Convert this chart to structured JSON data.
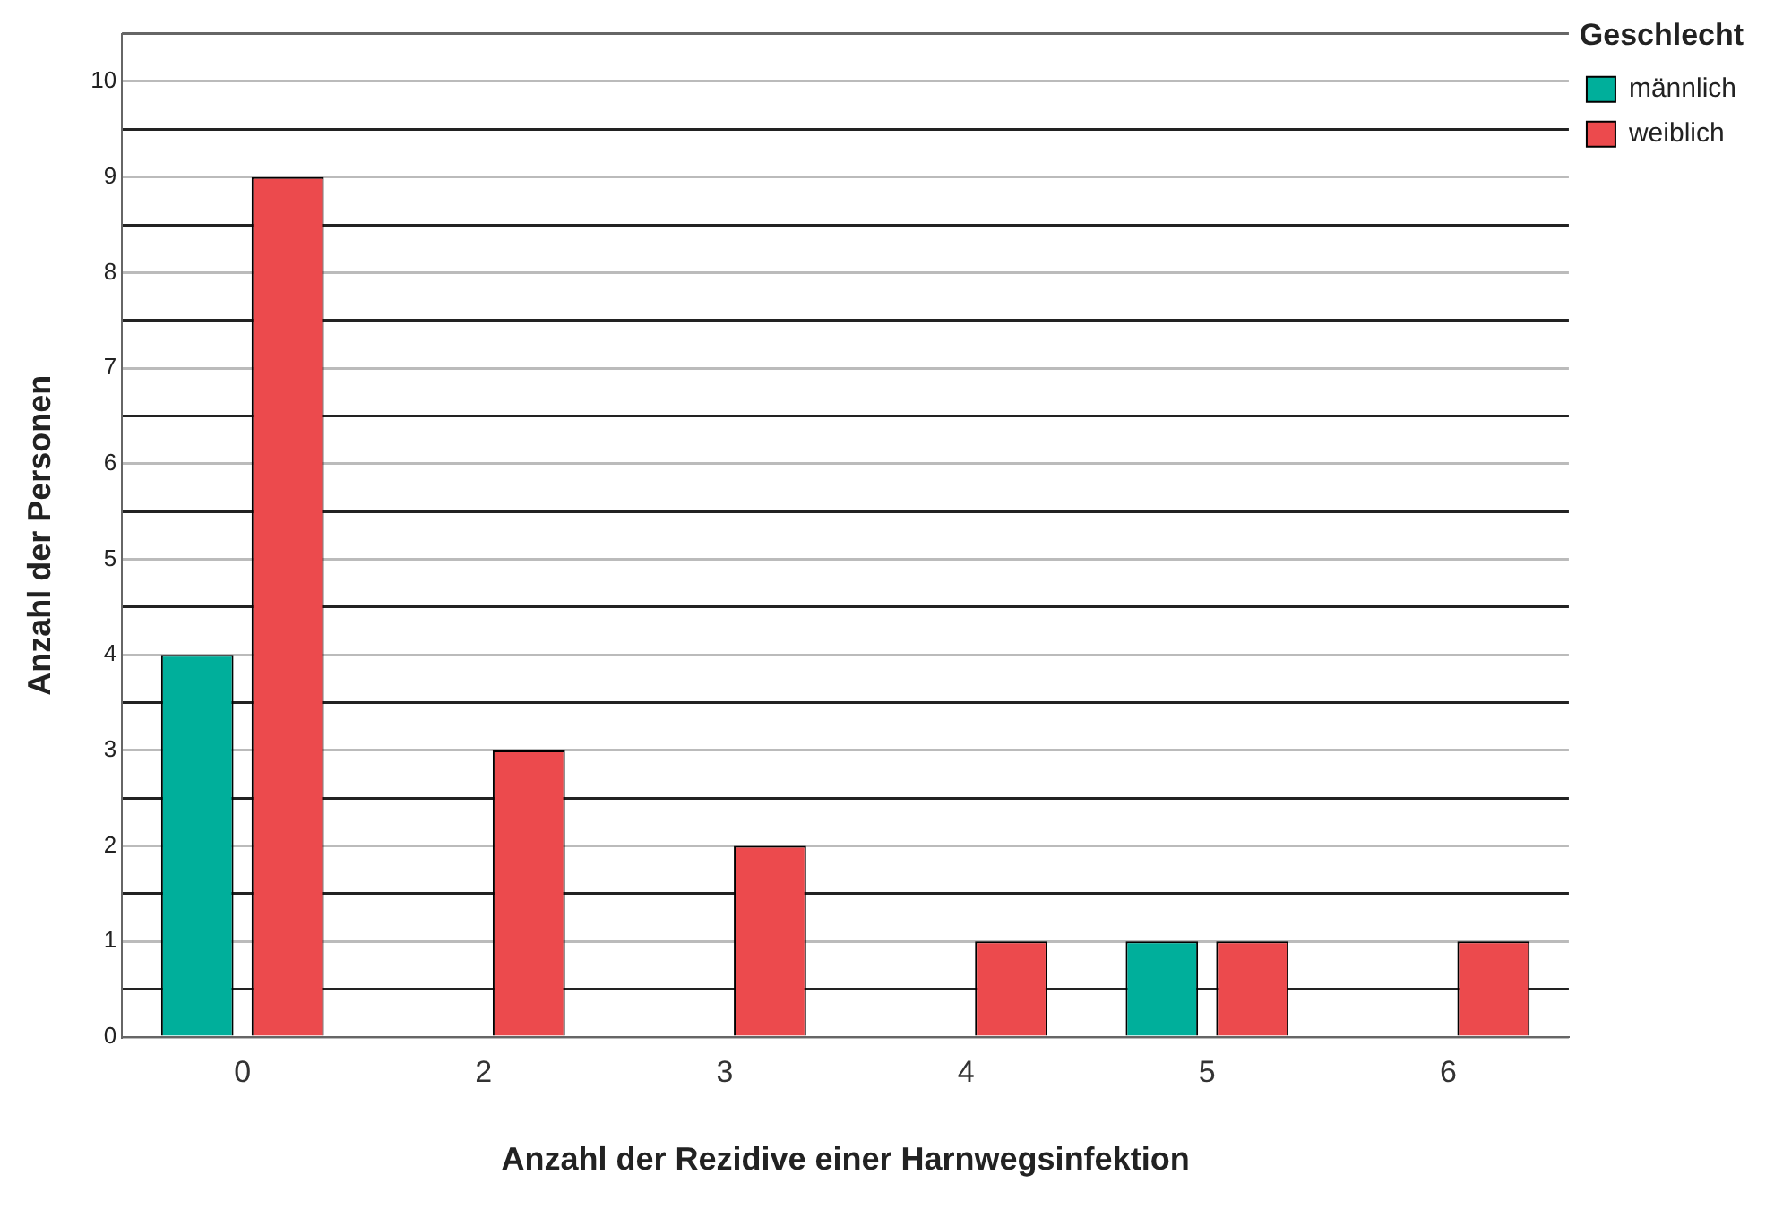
{
  "chart_data": {
    "type": "bar",
    "xlabel": "Anzahl der Rezidive einer Harnwegsinfektion",
    "ylabel": "Anzahl der Personen",
    "legend_title": "Geschlecht",
    "legend": "top right",
    "grid": "y",
    "categories": [
      "0",
      "2",
      "3",
      "4",
      "5",
      "6"
    ],
    "series": [
      {
        "name": "männlich",
        "color": "#00af9b",
        "values": [
          4,
          0,
          0,
          0,
          1,
          0
        ]
      },
      {
        "name": "weiblich",
        "color": "#ec4a4d",
        "values": [
          9,
          3,
          2,
          1,
          1,
          1
        ]
      }
    ],
    "ylim": [
      0,
      10.5
    ],
    "yticks": [
      0,
      {
        "value": 0.5,
        "label": null
      },
      1,
      {
        "value": 1.5,
        "label": null
      },
      2,
      {
        "value": 2.5,
        "label": null
      },
      3,
      {
        "value": 3.5,
        "label": null
      },
      4,
      {
        "value": 4.5,
        "label": null
      },
      5,
      {
        "value": 5.5,
        "label": null
      },
      6,
      {
        "value": 6.5,
        "label": null
      },
      7,
      {
        "value": 7.5,
        "label": null
      },
      8,
      {
        "value": 8.5,
        "label": null
      },
      9,
      {
        "value": 9.5,
        "label": null
      },
      10
    ]
  }
}
